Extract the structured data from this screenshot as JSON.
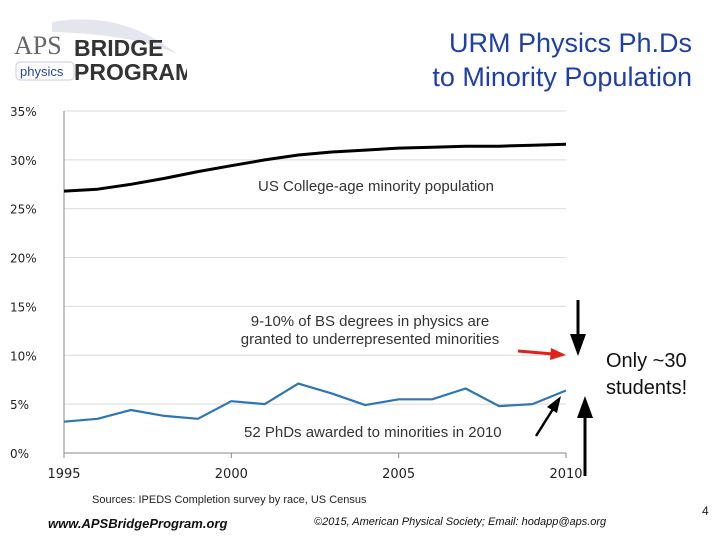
{
  "slide": {
    "title_line1": "URM Physics Ph.Ds",
    "title_line2": "to Minority Population",
    "logo": {
      "line1": "APS",
      "line2": "BRIDGE",
      "line3": "physics",
      "line4": "PROGRAM"
    },
    "sources": "Sources: IPEDS Completion survey by race, US Census",
    "footer_url": "www.APSBridgeProgram.org",
    "footer_copyright": "©2015, American Physical Society; Email: hodapp@aps.org",
    "page_number": "4",
    "callout": "Only ~30 students!",
    "callout_line1": "Only ~30",
    "callout_line2": "students!"
  },
  "colors": {
    "title": "#1f3fa8",
    "population_line": "#000000",
    "phd_line": "#2e75b6",
    "red_arrow": "#e0201b",
    "grid": "#d9d9d9"
  },
  "chart_data": {
    "type": "line",
    "x_ticks": [
      1995,
      2000,
      2005,
      2010
    ],
    "y_ticks": [
      "0%",
      "5%",
      "10%",
      "15%",
      "20%",
      "25%",
      "30%",
      "35%"
    ],
    "y_tick_values": [
      0,
      5,
      10,
      15,
      20,
      25,
      30,
      35
    ],
    "xlim": [
      1995,
      2010
    ],
    "ylim": [
      0,
      35
    ],
    "grid": true,
    "series": [
      {
        "label": "US College-age minority population",
        "color": "#000000",
        "x": [
          1995,
          1996,
          1997,
          1998,
          1999,
          2000,
          2001,
          2002,
          2003,
          2004,
          2005,
          2006,
          2007,
          2008,
          2009,
          2010
        ],
        "y": [
          26.8,
          27.0,
          27.5,
          28.1,
          28.8,
          29.4,
          30.0,
          30.5,
          30.8,
          31.0,
          31.2,
          31.3,
          31.4,
          31.4,
          31.5,
          31.6
        ]
      },
      {
        "label": "52 PhDs awarded to minorities in 2010",
        "color": "#2e75b6",
        "x": [
          1995,
          1996,
          1997,
          1998,
          1999,
          2000,
          2001,
          2002,
          2003,
          2004,
          2005,
          2006,
          2007,
          2008,
          2009,
          2010
        ],
        "y": [
          3.2,
          3.5,
          4.4,
          3.8,
          3.5,
          5.3,
          5.0,
          7.1,
          6.1,
          4.9,
          5.5,
          5.5,
          6.6,
          4.8,
          5.0,
          6.4
        ]
      }
    ],
    "annotations": {
      "bs_degrees_line1": "9-10% of BS degrees in physics are",
      "bs_degrees_line2": "granted to underrepresented minorities"
    }
  }
}
